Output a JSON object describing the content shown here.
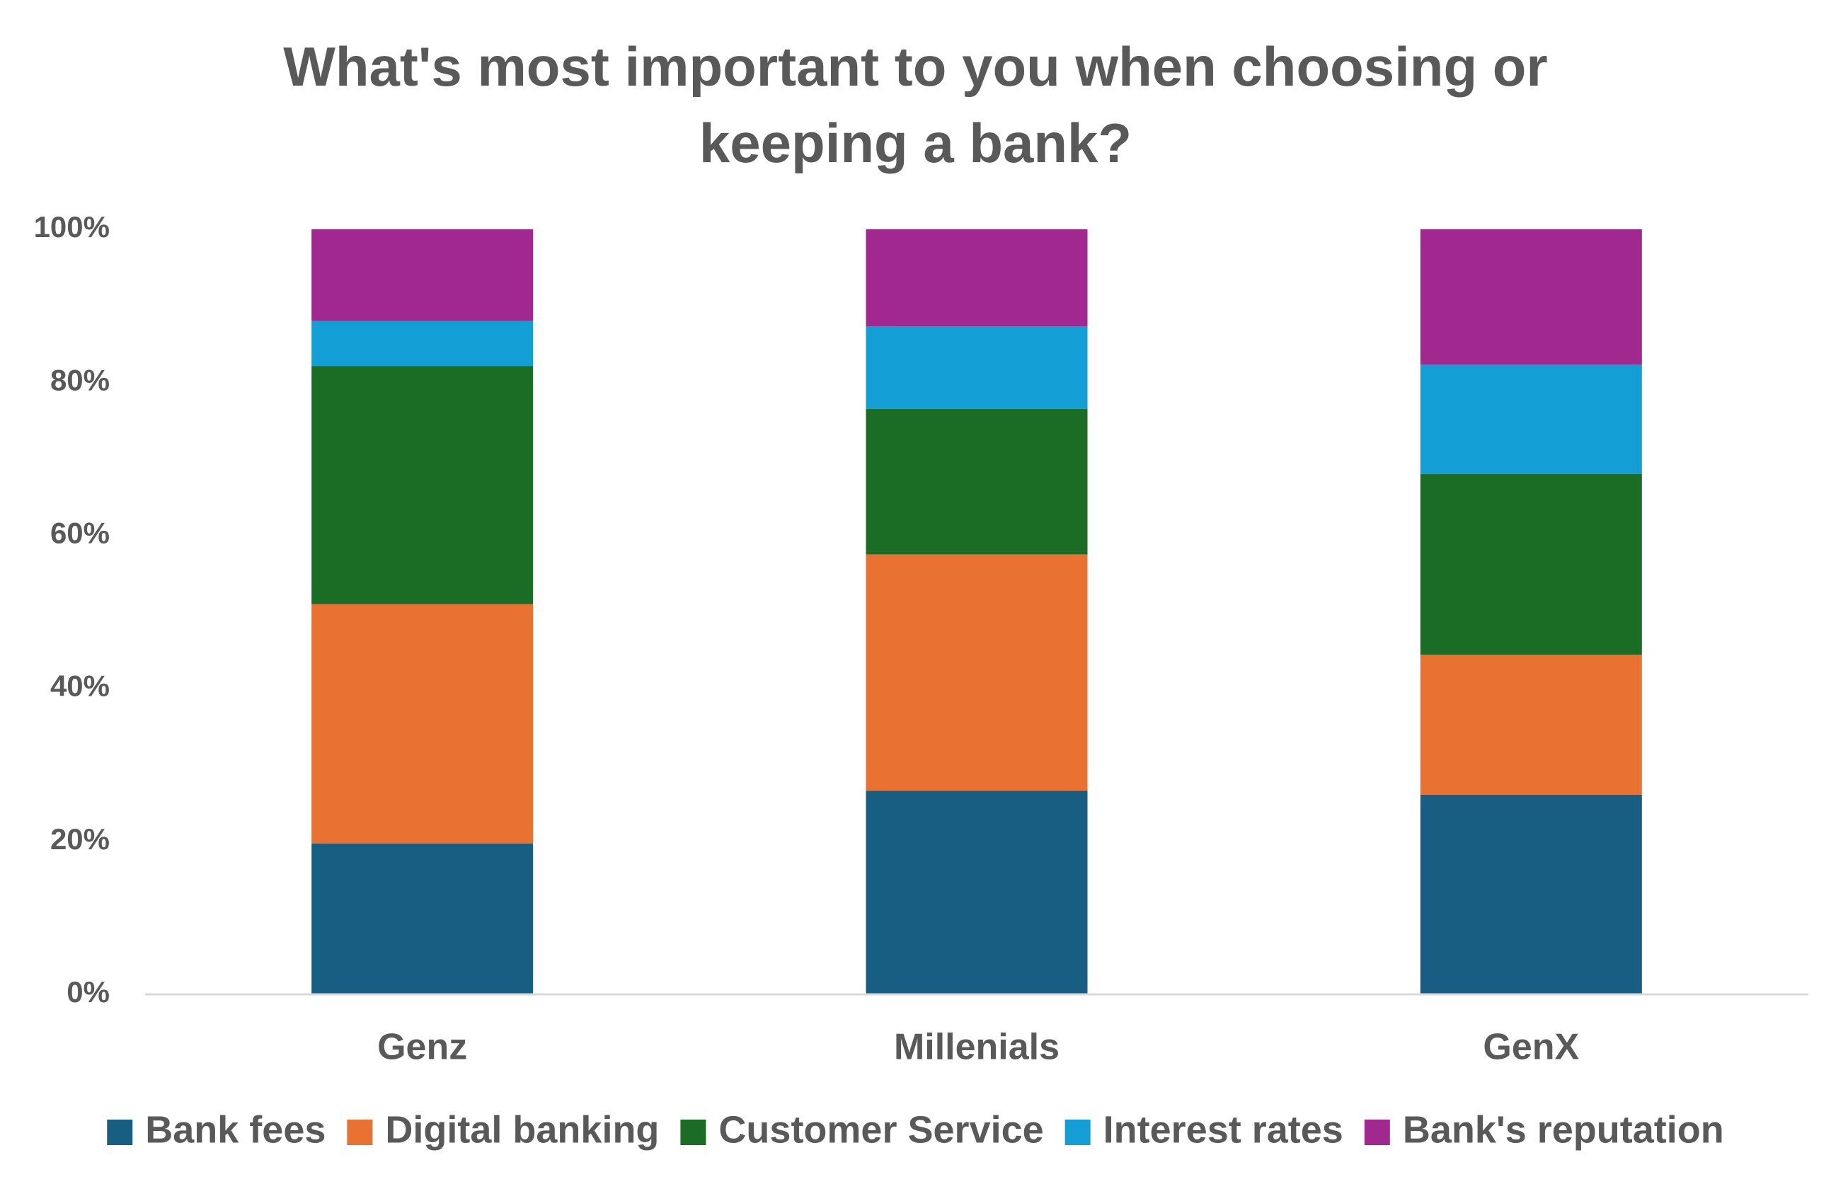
{
  "chart_data": {
    "type": "bar",
    "stacked": true,
    "title_lines": [
      "What's most important to you when choosing or",
      "keeping a bank?"
    ],
    "xlabel": "",
    "ylabel": "",
    "categories": [
      "Genz",
      "Millenials",
      "GenX"
    ],
    "y_ticks": [
      "0%",
      "20%",
      "40%",
      "60%",
      "80%",
      "100%"
    ],
    "ylim": [
      0,
      100
    ],
    "grid": false,
    "legend_position": "bottom",
    "series": [
      {
        "name": "Bank fees",
        "color": "#175E82",
        "values": [
          19.7,
          26.6,
          26.1
        ]
      },
      {
        "name": "Digital banking",
        "color": "#E97233",
        "values": [
          31.3,
          30.9,
          18.3
        ]
      },
      {
        "name": "Customer Service",
        "color": "#1B6C24",
        "values": [
          31.1,
          19.0,
          23.6
        ]
      },
      {
        "name": "Interest rates",
        "color": "#139ED6",
        "values": [
          5.9,
          10.8,
          14.3
        ]
      },
      {
        "name": "Bank's reputation",
        "color": "#A0288F",
        "values": [
          12.0,
          12.7,
          17.7
        ]
      }
    ]
  }
}
